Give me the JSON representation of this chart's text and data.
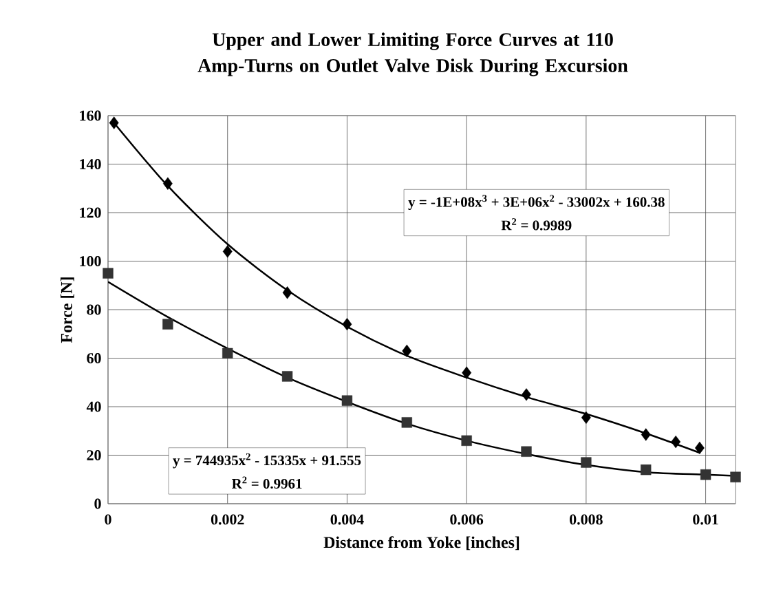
{
  "chart_data": {
    "type": "scatter",
    "title": "Upper and Lower Limiting Force Curves at 110 Amp-Turns on Outlet Valve Disk During Excursion",
    "xlabel": "Distance from Yoke [inches]",
    "ylabel": "Force [N]",
    "xlim": [
      0,
      0.0105
    ],
    "ylim": [
      0,
      160
    ],
    "xticks": [
      0,
      0.002,
      0.004,
      0.006,
      0.008,
      0.01
    ],
    "yticks": [
      0,
      20,
      40,
      60,
      80,
      100,
      120,
      140,
      160
    ],
    "grid": true,
    "annotations": [
      "y = -1E+08x$^{3}$ + 3E+06x$^{2}$ - 33002x + 160.38",
      "R$^{2}$ = 0.9989",
      "y = 744935x$^{2}$ - 15335x + 91.555",
      "R$^{2}$ = 0.9961"
    ],
    "series": [
      {
        "marker": "diamond",
        "color": "#000000",
        "x": [
          0.0001,
          0.001,
          0.002,
          0.003,
          0.004,
          0.005,
          0.006,
          0.007,
          0.008,
          0.009,
          0.0095,
          0.0099
        ],
        "values": [
          157,
          132,
          104,
          87,
          74,
          63,
          54,
          45,
          35.5,
          28.5,
          25.5,
          23
        ]
      },
      {
        "marker": "square",
        "color": "#333333",
        "x": [
          0,
          0.001,
          0.002,
          0.003,
          0.004,
          0.005,
          0.006,
          0.007,
          0.008,
          0.009,
          0.01,
          0.0105
        ],
        "values": [
          95,
          74,
          62,
          52.5,
          42.5,
          33.5,
          26,
          21.5,
          17,
          14,
          12,
          11
        ]
      },
      {
        "type": "line",
        "marker": "none",
        "color": "#000000",
        "x": [
          0.0001,
          0.001,
          0.002,
          0.003,
          0.004,
          0.005,
          0.006,
          0.007,
          0.008,
          0.009,
          0.0099
        ],
        "values": [
          157,
          131,
          107,
          88,
          73,
          61,
          52,
          44,
          37,
          29,
          21
        ]
      },
      {
        "type": "line",
        "marker": "none",
        "color": "#000000",
        "x": [
          0,
          0.001,
          0.002,
          0.003,
          0.004,
          0.005,
          0.006,
          0.007,
          0.008,
          0.009,
          0.01,
          0.0105
        ],
        "values": [
          91.5,
          77,
          64,
          52,
          42,
          33,
          26,
          20.5,
          16,
          13,
          12,
          11.5
        ]
      }
    ]
  }
}
